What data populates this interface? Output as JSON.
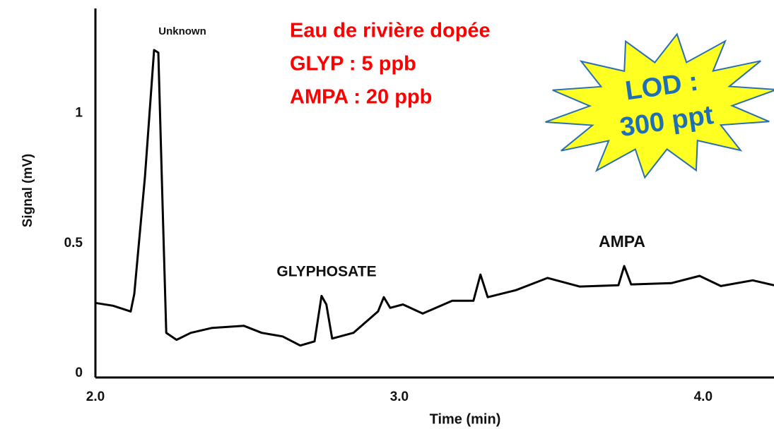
{
  "chart_data": {
    "type": "line",
    "x_label": "Time (min)",
    "y_label": "Signal (mV)",
    "xlim": [
      2.0,
      4.233
    ],
    "ylim": [
      0,
      1.42
    ],
    "xticks": [
      {
        "value": 2,
        "label": "2.0"
      },
      {
        "value": 3,
        "label": "3.0"
      },
      {
        "value": 4,
        "label": "4.0"
      }
    ],
    "yticks": [
      0,
      0.5,
      1
    ],
    "color": "#000000",
    "x": [
      2.0,
      2.058,
      2.116,
      2.128,
      2.163,
      2.193,
      2.207,
      2.221,
      2.233,
      2.267,
      2.314,
      2.384,
      2.488,
      2.547,
      2.616,
      2.674,
      2.721,
      2.744,
      2.76,
      2.779,
      2.849,
      2.93,
      2.949,
      2.97,
      3.012,
      3.077,
      3.174,
      3.244,
      3.267,
      3.291,
      3.384,
      3.488,
      3.593,
      3.721,
      3.74,
      3.763,
      3.895,
      3.988,
      4.058,
      4.163,
      4.233
    ],
    "values": [
      0.287,
      0.276,
      0.254,
      0.322,
      0.773,
      1.26,
      1.25,
      0.664,
      0.172,
      0.145,
      0.172,
      0.191,
      0.199,
      0.172,
      0.158,
      0.123,
      0.139,
      0.314,
      0.281,
      0.15,
      0.172,
      0.254,
      0.309,
      0.268,
      0.281,
      0.246,
      0.295,
      0.295,
      0.396,
      0.309,
      0.336,
      0.383,
      0.35,
      0.355,
      0.429,
      0.358,
      0.363,
      0.391,
      0.352,
      0.374,
      0.355
    ],
    "peak_labels": [
      "Unknown",
      "GLYPHOSATE",
      "AMPA"
    ],
    "sample_info": [
      "Eau de rivière dopée",
      "GLYP : 5 ppb",
      "AMPA : 20 ppb"
    ],
    "lod_badge": [
      "LOD :",
      "300 ppt"
    ]
  }
}
